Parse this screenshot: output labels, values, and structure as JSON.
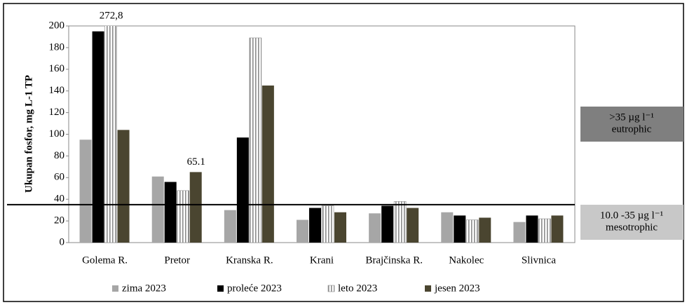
{
  "chart_data": {
    "type": "bar",
    "y_label": "Ukupan fosfor, mg L-1 TP",
    "categories": [
      "Golema R.",
      "Pretor",
      "Kranska R.",
      "Krani",
      "Brajčinska R.",
      "Nakolec",
      "Slivnica"
    ],
    "series": [
      {
        "name": "zima 2023",
        "color": "#a6a6a6",
        "values": [
          95,
          61,
          30,
          21,
          27,
          28,
          19
        ]
      },
      {
        "name": "proleće 2023",
        "color": "#000000",
        "values": [
          195,
          56,
          97,
          32,
          34,
          25,
          25
        ]
      },
      {
        "name": "leto 2023",
        "color": "striped",
        "values": [
          272.8,
          48,
          189,
          34,
          38,
          21,
          22
        ],
        "value_labels": [
          "272,8",
          null,
          null,
          null,
          null,
          null,
          null
        ]
      },
      {
        "name": "jesen 2023",
        "color": "#4a4530",
        "values": [
          104,
          65.1,
          145,
          28,
          32,
          23,
          25
        ],
        "value_labels": [
          null,
          "65.1",
          null,
          null,
          null,
          null,
          null
        ]
      }
    ],
    "ylim": [
      0,
      200
    ],
    "yticks": [
      0,
      20,
      40,
      60,
      80,
      100,
      120,
      140,
      160,
      180,
      200
    ],
    "threshold": 35,
    "zones": [
      {
        "line1": ">35 µg l⁻¹",
        "line2": "eutrophic",
        "color": "#7f7f7f"
      },
      {
        "line1": "10.0 -35 µg l⁻¹",
        "line2": "mesotrophic",
        "color": "#c8c8c8"
      }
    ]
  }
}
